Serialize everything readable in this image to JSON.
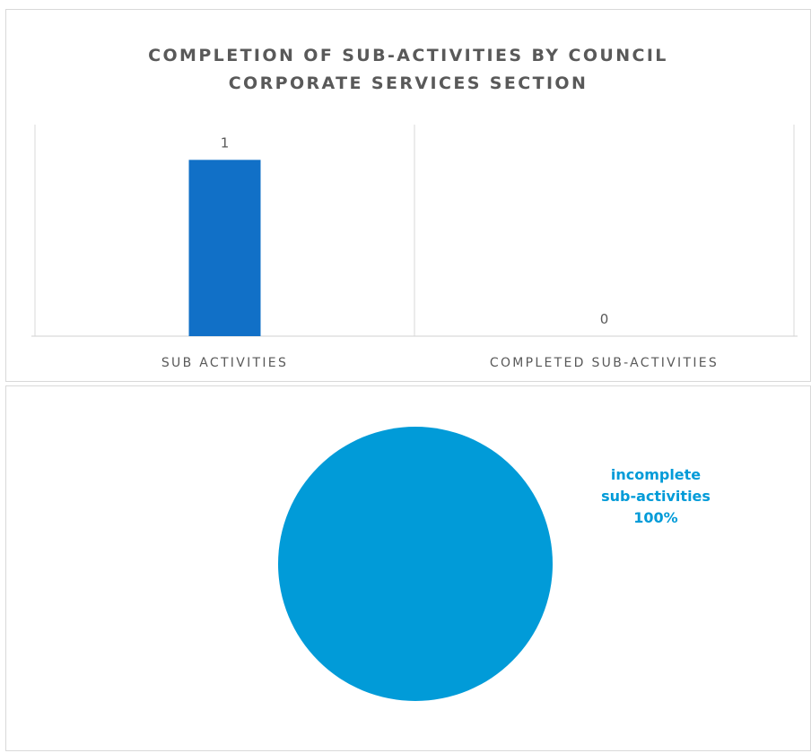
{
  "chart_data": [
    {
      "type": "bar",
      "title_lines": [
        "COMPLETION OF SUB-ACTIVITIES BY COUNCIL",
        "CORPORATE SERVICES SECTION"
      ],
      "categories": [
        "SUB ACTIVITIES",
        "COMPLETED SUB-ACTIVITIES"
      ],
      "values": [
        1,
        0
      ],
      "data_labels": [
        "1",
        "0"
      ],
      "ylim": [
        0,
        1.2
      ],
      "grid": false,
      "colors": {
        "bar": "#1170c7",
        "axis": "#d9d9d9",
        "text": "#595959"
      }
    },
    {
      "type": "pie",
      "slices": [
        {
          "label_lines": [
            "incomplete",
            "sub-activities",
            "100%"
          ],
          "value": 1.0,
          "color": "#019bd8"
        }
      ]
    }
  ]
}
